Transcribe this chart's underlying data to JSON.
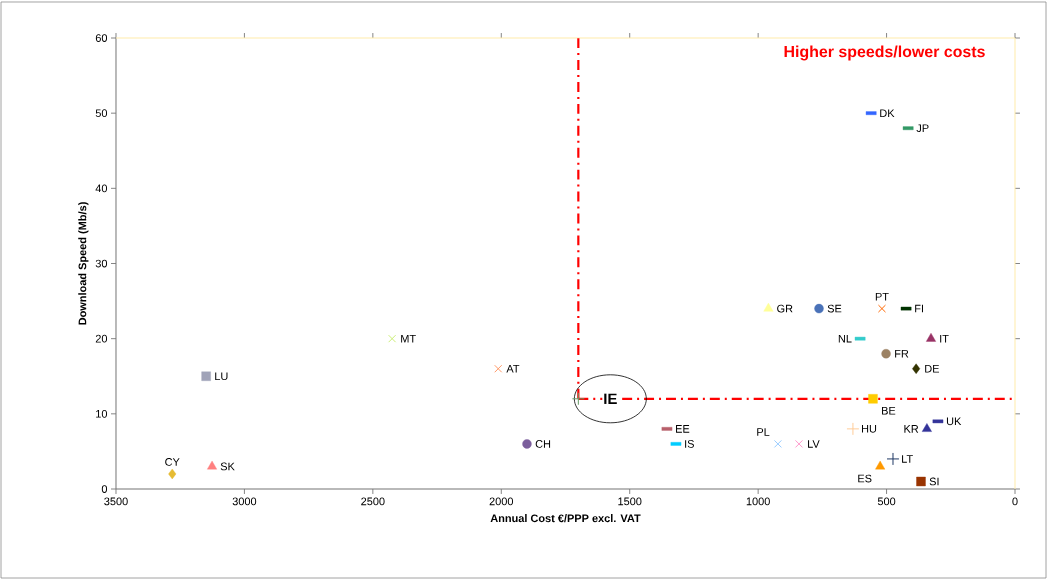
{
  "chart_data": {
    "type": "scatter",
    "xlabel": "Annual Cost €/PPP excl. VAT",
    "ylabel": "Download Speed (Mb/s)",
    "xlim": [
      3500,
      0
    ],
    "xticks": [
      3500,
      3000,
      2500,
      2000,
      1500,
      1000,
      500,
      0
    ],
    "ylim": [
      0,
      60
    ],
    "yticks": [
      0,
      10,
      20,
      30,
      40,
      50,
      60
    ],
    "grid": false,
    "ref_lines": [
      {
        "axis": "x",
        "value": 1700,
        "color": "#ff0000",
        "line_style": "dashed"
      },
      {
        "axis": "y",
        "value": 12,
        "color": "#ff0000",
        "line_style": "dashed"
      }
    ],
    "annotations": [
      "Higher speeds/lower costs",
      {
        "text": "IE",
        "x": 1700,
        "y": 12
      }
    ],
    "series": [
      {
        "name": "DK",
        "color": "#3366ff",
        "marker": "square",
        "x": [
          560
        ],
        "values": [
          50
        ]
      },
      {
        "name": "JP",
        "color": "#339966",
        "marker": "square",
        "x": [
          416
        ],
        "values": [
          48
        ]
      },
      {
        "name": "GR",
        "color": "#ffff99",
        "marker": "triangle",
        "x": [
          960
        ],
        "values": [
          24
        ]
      },
      {
        "name": "SE",
        "color": "#4a72b8",
        "marker": "circle",
        "x": [
          763
        ],
        "values": [
          24
        ]
      },
      {
        "name": "PT",
        "color": "#ff6600",
        "marker": "cross",
        "x": [
          518
        ],
        "values": [
          24
        ]
      },
      {
        "name": "FI",
        "color": "#003300",
        "marker": "square",
        "x": [
          424
        ],
        "values": [
          24
        ]
      },
      {
        "name": "NL",
        "color": "#33cccc",
        "marker": "square",
        "x": [
          603
        ],
        "values": [
          20
        ]
      },
      {
        "name": "IT",
        "color": "#993366",
        "marker": "triangle",
        "x": [
          327
        ],
        "values": [
          20
        ]
      },
      {
        "name": "FR",
        "color": "#9c8264",
        "marker": "circle",
        "x": [
          502
        ],
        "values": [
          18
        ]
      },
      {
        "name": "DE",
        "color": "#333300",
        "marker": "diamond",
        "x": [
          385
        ],
        "values": [
          16
        ]
      },
      {
        "name": "BE",
        "color": "#ffcc00",
        "marker": "square",
        "x": [
          553
        ],
        "values": [
          12
        ]
      },
      {
        "color": "#669966",
        "marker": "plus",
        "x": [
          1700
        ],
        "values": [
          12
        ]
      },
      {
        "name": "EE",
        "color": "#b85f6b",
        "marker": "square",
        "x": [
          1355
        ],
        "values": [
          8
        ]
      },
      {
        "name": "IS",
        "color": "#00ccff",
        "marker": "square",
        "x": [
          1320
        ],
        "values": [
          6
        ]
      },
      {
        "name": "PL",
        "color": "#99ccff",
        "marker": "cross",
        "x": [
          923
        ],
        "values": [
          6
        ]
      },
      {
        "name": "LV",
        "color": "#ff99cc",
        "marker": "cross",
        "x": [
          841
        ],
        "values": [
          6
        ]
      },
      {
        "name": "HU",
        "color": "#ffcc99",
        "marker": "plus",
        "x": [
          631
        ],
        "values": [
          8
        ]
      },
      {
        "name": "KR",
        "color": "#333399",
        "marker": "triangle",
        "x": [
          343
        ],
        "values": [
          8
        ]
      },
      {
        "name": "UK",
        "color": "#333399",
        "marker": "square",
        "x": [
          300
        ],
        "values": [
          9
        ]
      },
      {
        "name": "LT",
        "color": "#1f3864",
        "marker": "plus",
        "x": [
          475
        ],
        "values": [
          4
        ]
      },
      {
        "name": "ES",
        "color": "#ff9900",
        "marker": "triangle",
        "x": [
          525
        ],
        "values": [
          3
        ]
      },
      {
        "name": "SI",
        "color": "#993300",
        "marker": "square",
        "x": [
          366
        ],
        "values": [
          1
        ]
      },
      {
        "name": "CY",
        "color": "#e6bb33",
        "marker": "diamond",
        "x": [
          3281
        ],
        "values": [
          2
        ]
      },
      {
        "name": "SK",
        "color": "#ff8080",
        "marker": "triangle",
        "x": [
          3126
        ],
        "values": [
          3
        ]
      },
      {
        "name": "LU",
        "color": "#a0a3b8",
        "marker": "square",
        "x": [
          3149
        ],
        "values": [
          15
        ]
      },
      {
        "name": "MT",
        "color": "#ccee77",
        "marker": "cross",
        "x": [
          2425
        ],
        "values": [
          20
        ]
      },
      {
        "name": "AT",
        "color": "#ff9966",
        "marker": "cross",
        "x": [
          2012
        ],
        "values": [
          16
        ]
      },
      {
        "name": "CH",
        "color": "#7b5e9c",
        "marker": "circle",
        "x": [
          1900
        ],
        "values": [
          6
        ]
      }
    ]
  }
}
